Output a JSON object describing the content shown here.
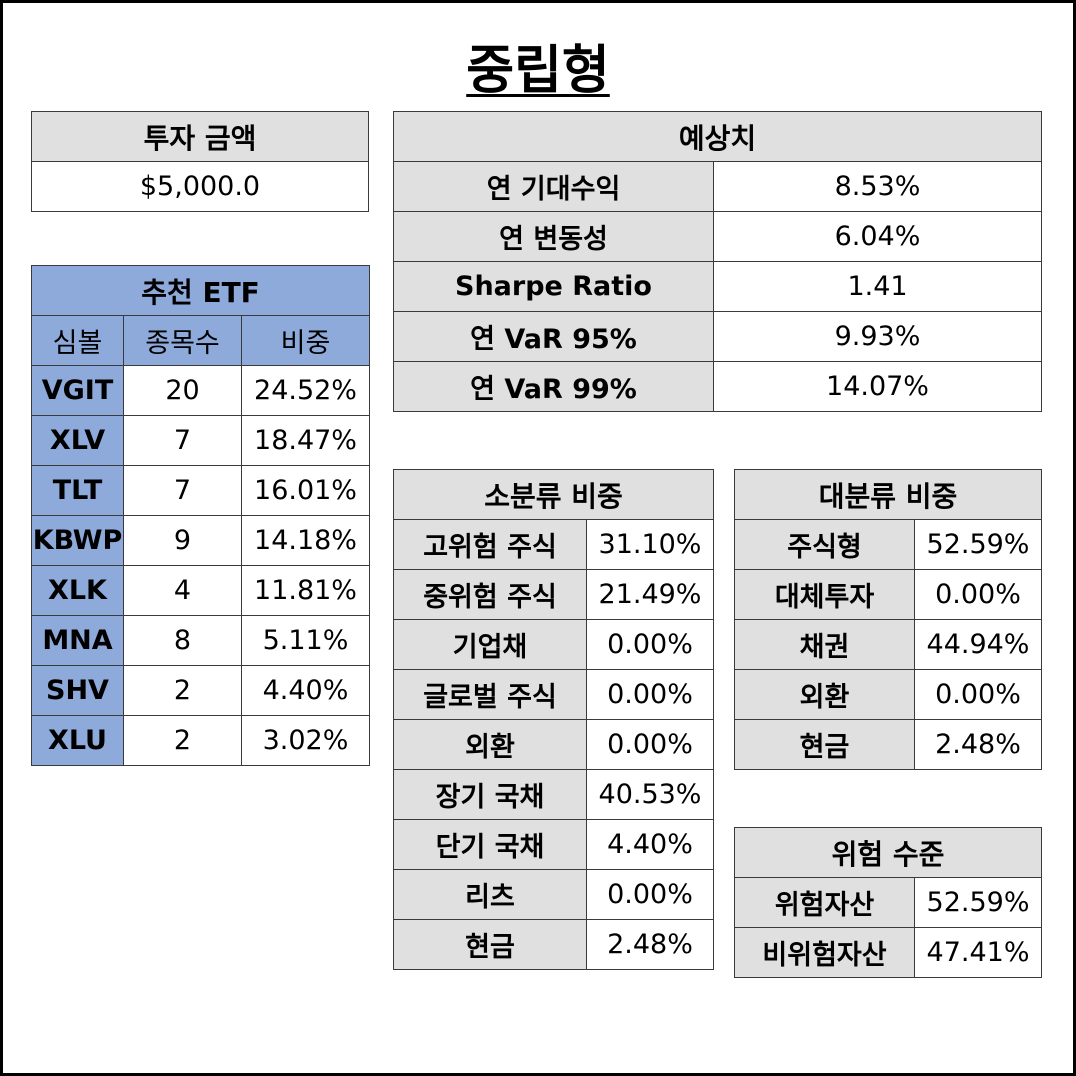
{
  "title": "중립형",
  "investment": {
    "header": "투자 금액",
    "value": "$5,000.0"
  },
  "recommended_etf": {
    "header": "추천 ETF",
    "columns": [
      "심볼",
      "종목수",
      "비중"
    ],
    "rows": [
      {
        "symbol": "VGIT",
        "count": "20",
        "weight": "24.52%"
      },
      {
        "symbol": "XLV",
        "count": "7",
        "weight": "18.47%"
      },
      {
        "symbol": "TLT",
        "count": "7",
        "weight": "16.01%"
      },
      {
        "symbol": "KBWP",
        "count": "9",
        "weight": "14.18%"
      },
      {
        "symbol": "XLK",
        "count": "4",
        "weight": "11.81%"
      },
      {
        "symbol": "MNA",
        "count": "8",
        "weight": "5.11%"
      },
      {
        "symbol": "SHV",
        "count": "2",
        "weight": "4.40%"
      },
      {
        "symbol": "XLU",
        "count": "2",
        "weight": "3.02%"
      }
    ]
  },
  "forecast": {
    "header": "예상치",
    "rows": [
      {
        "label": "연 기대수익",
        "value": "8.53%"
      },
      {
        "label": "연 변동성",
        "value": "6.04%"
      },
      {
        "label": "Sharpe Ratio",
        "value": "1.41"
      },
      {
        "label": "연 VaR 95%",
        "value": "9.93%"
      },
      {
        "label": "연 VaR 99%",
        "value": "14.07%"
      }
    ]
  },
  "sub_category": {
    "header": "소분류 비중",
    "rows": [
      {
        "label": "고위험 주식",
        "value": "31.10%"
      },
      {
        "label": "중위험 주식",
        "value": "21.49%"
      },
      {
        "label": "기업채",
        "value": "0.00%"
      },
      {
        "label": "글로벌 주식",
        "value": "0.00%"
      },
      {
        "label": "외환",
        "value": "0.00%"
      },
      {
        "label": "장기 국채",
        "value": "40.53%"
      },
      {
        "label": "단기 국채",
        "value": "4.40%"
      },
      {
        "label": "리츠",
        "value": "0.00%"
      },
      {
        "label": "현금",
        "value": "2.48%"
      }
    ]
  },
  "main_category": {
    "header": "대분류 비중",
    "rows": [
      {
        "label": "주식형",
        "value": "52.59%"
      },
      {
        "label": "대체투자",
        "value": "0.00%"
      },
      {
        "label": "채권",
        "value": "44.94%"
      },
      {
        "label": "외환",
        "value": "0.00%"
      },
      {
        "label": "현금",
        "value": "2.48%"
      }
    ]
  },
  "risk_level": {
    "header": "위험 수준",
    "rows": [
      {
        "label": "위험자산",
        "value": "52.59%"
      },
      {
        "label": "비위험자산",
        "value": "47.41%"
      }
    ]
  }
}
